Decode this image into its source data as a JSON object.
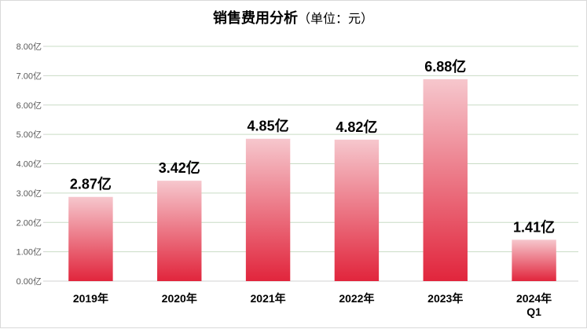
{
  "chart_data": {
    "type": "bar",
    "title": "销售费用分析",
    "subtitle": "（单位：元）",
    "categories": [
      "2019年",
      "2020年",
      "2021年",
      "2022年",
      "2023年",
      "2024年\nQ1"
    ],
    "values": [
      2.87,
      3.42,
      4.85,
      4.82,
      6.88,
      1.41
    ],
    "data_labels": [
      "2.87亿",
      "3.42亿",
      "4.85亿",
      "4.82亿",
      "6.88亿",
      "1.41亿"
    ],
    "yticks": [
      "0.00亿",
      "1.00亿",
      "2.00亿",
      "3.00亿",
      "4.00亿",
      "5.00亿",
      "6.00亿",
      "7.00亿",
      "8.00亿"
    ],
    "ylim": [
      0,
      8
    ],
    "xlabel": "",
    "ylabel": "",
    "grid": true,
    "colors": {
      "bar_top": "#f6c7cd",
      "bar_bottom": "#e1253c",
      "grid": "#c9dcc5"
    }
  }
}
